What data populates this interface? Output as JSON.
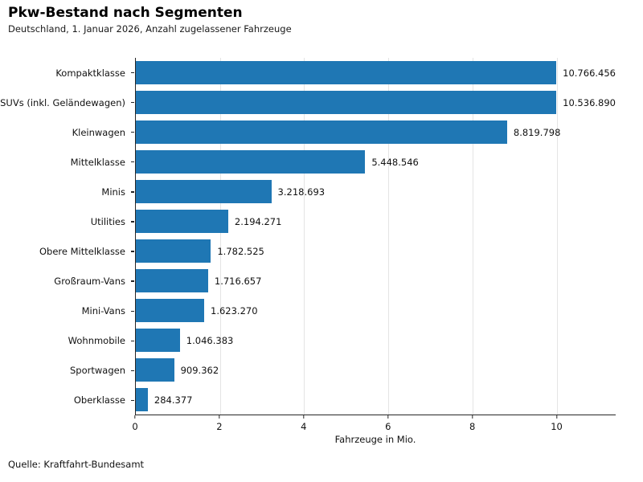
{
  "header": {
    "title": "Pkw-Bestand nach Segmenten",
    "subtitle": "Deutschland, 1. Januar 2026, Anzahl zugelassener Fahrzeuge"
  },
  "footer": {
    "source": "Quelle: Kraftfahrt-Bundesamt"
  },
  "chart_data": {
    "type": "bar",
    "orientation": "horizontal",
    "title": "Pkw-Bestand nach Segmenten",
    "subtitle": "Deutschland, 1. Januar 2026, Anzahl zugelassener Fahrzeuge",
    "categories": [
      "Kompaktklasse",
      "SUVs (inkl. Geländewagen)",
      "Kleinwagen",
      "Mittelklasse",
      "Minis",
      "Utilities",
      "Obere Mittelklasse",
      "Großraum-Vans",
      "Mini-Vans",
      "Wohnmobile",
      "Sportwagen",
      "Oberklasse"
    ],
    "values": [
      10766456,
      10536890,
      8819798,
      5448546,
      3218693,
      2194271,
      1782525,
      1716657,
      1623270,
      1046383,
      909362,
      284377
    ],
    "value_labels": [
      "10.766.456",
      "10.536.890",
      "8.819.798",
      "5.448.546",
      "3.218.693",
      "2.194.271",
      "1.782.525",
      "1.716.657",
      "1.623.270",
      "1.046.383",
      "909.362",
      "284.377"
    ],
    "xlabel": "Fahrzeuge in Mio.",
    "ylabel": "",
    "x_ticks": [
      0,
      2,
      4,
      6,
      8,
      10
    ],
    "x_tick_labels": [
      "0",
      "2",
      "4",
      "6",
      "8",
      "10"
    ],
    "xlim_mio": [
      0,
      11.4
    ],
    "grid": "vertical-light",
    "legend": "none",
    "bar_color": "#1f77b4",
    "spine_color": "#262626",
    "grid_color": "#e4e4e4",
    "source": "Quelle: Kraftfahrt-Bundesamt"
  }
}
